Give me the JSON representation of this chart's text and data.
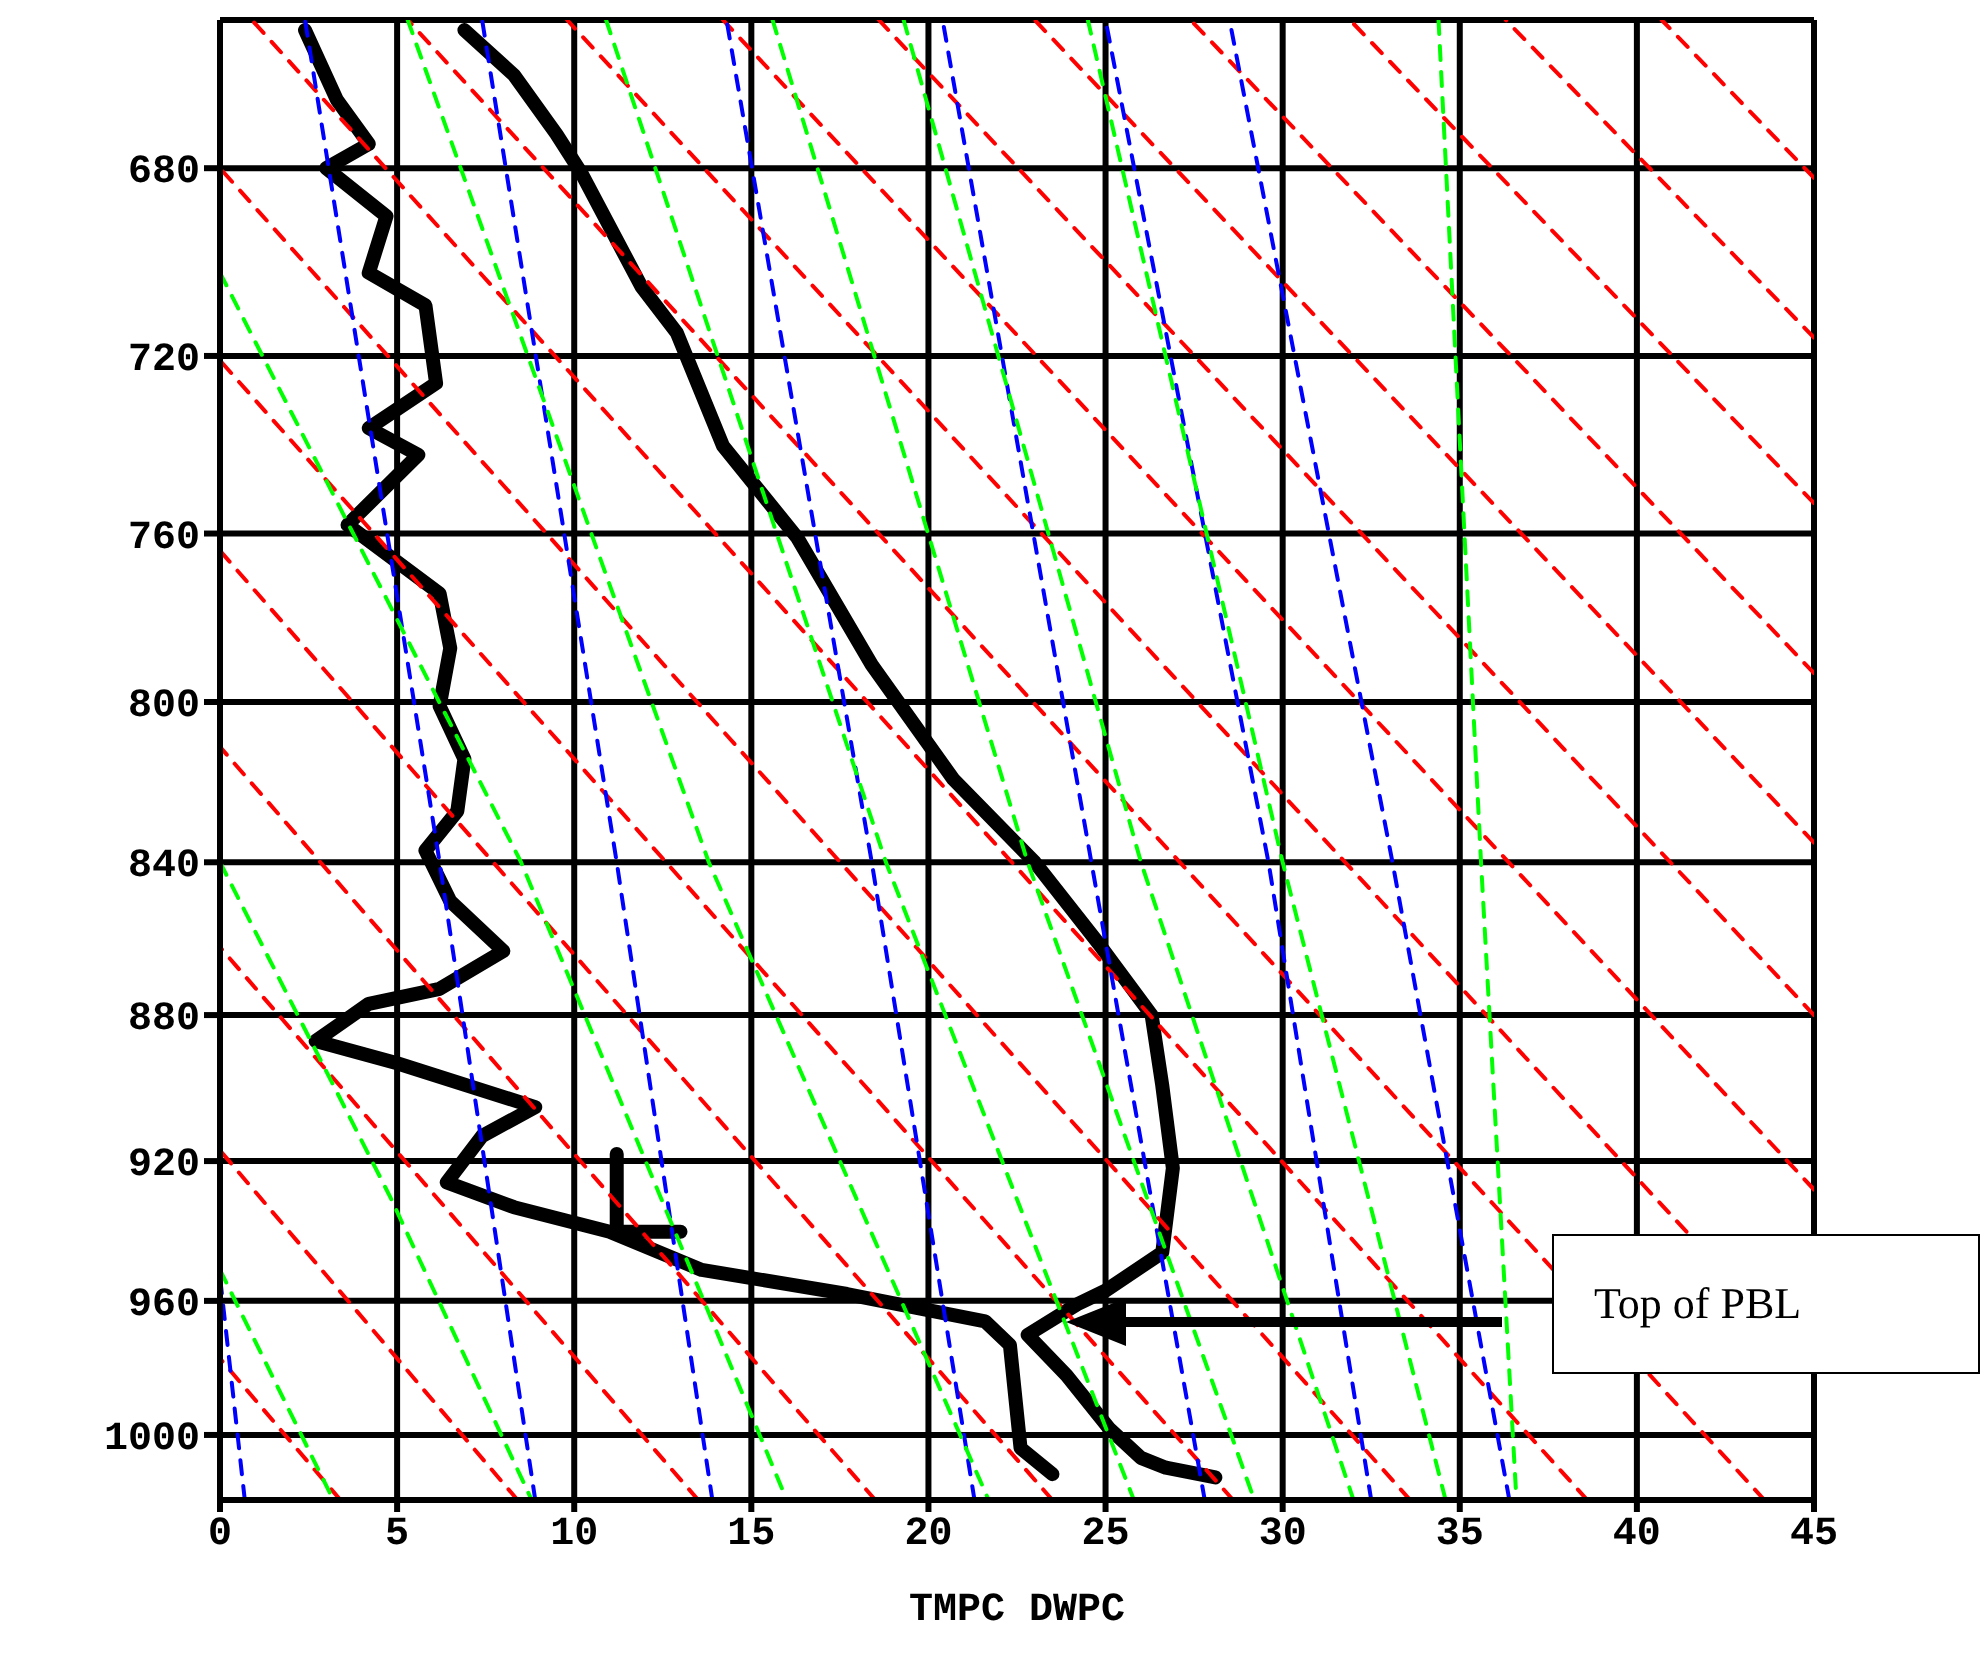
{
  "chart_data": {
    "type": "line",
    "xlabel": "TMPC  DWPC",
    "xlim": [
      0,
      45
    ],
    "ylim": [
      1020,
      650
    ],
    "xticks": [
      0,
      5,
      10,
      15,
      20,
      25,
      30,
      35,
      40,
      45
    ],
    "yticks": [
      680,
      720,
      760,
      800,
      840,
      880,
      920,
      960,
      1000
    ],
    "grid": true,
    "marker": "none",
    "log": true,
    "annotations": [
      "Top of PBL"
    ],
    "series": [
      {
        "color": "#000000",
        "line_style": "solid",
        "x": [
          6.9,
          8.3,
          9.5,
          10.2,
          11.9,
          12.9,
          14.2,
          16.3,
          18.4,
          20.7,
          23.0,
          24.8,
          26.3,
          26.6,
          26.9,
          26.6,
          25.0,
          24.2,
          22.8,
          23.9,
          25.1,
          26.0,
          26.7,
          28.1
        ],
        "values": [
          652,
          661,
          673,
          681,
          705,
          715,
          740,
          761,
          791,
          819,
          840,
          861,
          880,
          899,
          922,
          946,
          957,
          961,
          970,
          982,
          998,
          1007,
          1010,
          1013
        ]
      },
      {
        "color": "#000000",
        "line_style": "solid",
        "x": [
          2.4,
          3.3,
          4.2,
          3.0,
          4.7,
          4.2,
          5.8,
          6.1,
          4.2,
          5.6,
          3.6,
          6.2,
          6.5,
          6.2,
          6.9,
          6.7,
          5.8,
          6.5,
          8.0,
          6.2,
          4.2,
          2.7,
          5.0,
          8.9,
          7.4,
          6.4,
          8.3,
          11.0,
          13.6,
          17.7,
          21.6,
          22.3,
          22.6,
          23.5
        ],
        "values": [
          652,
          666,
          675,
          680,
          690,
          702,
          709,
          726,
          736,
          742,
          758,
          774,
          787,
          801,
          814,
          827,
          837,
          850,
          863,
          873,
          877,
          887,
          893,
          905,
          913,
          926,
          933,
          940,
          951,
          958,
          966,
          973,
          1004,
          1012
        ]
      },
      {
        "color": "#000000",
        "line_style": "solid",
        "x": [
          11.2,
          11.2,
          13.0
        ],
        "values": [
          918,
          940,
          940
        ]
      },
      {
        "color": "#ff0000",
        "line_style": "dashed",
        "x": [
          3.4,
          0
        ],
        "values": [
          1020,
          977
        ]
      },
      {
        "color": "#ff0000",
        "line_style": "dashed",
        "x": [
          8.4,
          0
        ],
        "values": [
          1020,
          917
        ]
      },
      {
        "color": "#ff0000",
        "line_style": "dashed",
        "x": [
          13.5,
          0
        ],
        "values": [
          1020,
          862
        ]
      },
      {
        "color": "#ff0000",
        "line_style": "dashed",
        "x": [
          18.5,
          0
        ],
        "values": [
          1020,
          811
        ]
      },
      {
        "color": "#ff0000",
        "line_style": "dashed",
        "x": [
          23.5,
          0
        ],
        "values": [
          1020,
          764
        ]
      },
      {
        "color": "#ff0000",
        "line_style": "dashed",
        "x": [
          28.6,
          0
        ],
        "values": [
          1020,
          721
        ]
      },
      {
        "color": "#ff0000",
        "line_style": "dashed",
        "x": [
          33.6,
          0
        ],
        "values": [
          1020,
          680
        ]
      },
      {
        "color": "#ff0000",
        "line_style": "dashed",
        "x": [
          38.6,
          0.9
        ],
        "values": [
          1020,
          650
        ]
      },
      {
        "color": "#ff0000",
        "line_style": "dashed",
        "x": [
          43.6,
          5.3
        ],
        "values": [
          1020,
          650
        ]
      },
      {
        "color": "#ff0000",
        "line_style": "dashed",
        "x": [
          41.4,
          9.8
        ],
        "values": [
          940,
          650
        ]
      },
      {
        "color": "#ff0000",
        "line_style": "dashed",
        "x": [
          45,
          14.2
        ],
        "values": [
          928,
          650
        ]
      },
      {
        "color": "#ff0000",
        "line_style": "dashed",
        "x": [
          45,
          18.6
        ],
        "values": [
          880,
          650
        ]
      },
      {
        "color": "#ff0000",
        "line_style": "dashed",
        "x": [
          45,
          23.0
        ],
        "values": [
          835,
          650
        ]
      },
      {
        "color": "#ff0000",
        "line_style": "dashed",
        "x": [
          45,
          27.4
        ],
        "values": [
          793,
          650
        ]
      },
      {
        "color": "#ff0000",
        "line_style": "dashed",
        "x": [
          45,
          31.9
        ],
        "values": [
          753,
          650
        ]
      },
      {
        "color": "#ff0000",
        "line_style": "dashed",
        "x": [
          45,
          36.3
        ],
        "values": [
          716,
          650
        ]
      },
      {
        "color": "#ff0000",
        "line_style": "dashed",
        "x": [
          45,
          40.7
        ],
        "values": [
          682,
          650
        ]
      },
      {
        "color": "#0000ff",
        "line_style": "dashed",
        "x": [
          0.7,
          0
        ],
        "values": [
          1020,
          953
        ]
      },
      {
        "color": "#0000ff",
        "line_style": "dashed",
        "x": [
          8.9,
          6.2,
          2.4
        ],
        "values": [
          1020,
          840,
          650
        ]
      },
      {
        "color": "#0000ff",
        "line_style": "dashed",
        "x": [
          13.9,
          11.2,
          7.4
        ],
        "values": [
          1020,
          840,
          650
        ]
      },
      {
        "color": "#0000ff",
        "line_style": "dashed",
        "x": [
          21.3,
          18.4,
          14.3
        ],
        "values": [
          1020,
          840,
          650
        ]
      },
      {
        "color": "#0000ff",
        "line_style": "dashed",
        "x": [
          27.8,
          24.6,
          20.4
        ],
        "values": [
          1020,
          840,
          650
        ]
      },
      {
        "color": "#0000ff",
        "line_style": "dashed",
        "x": [
          32.5,
          29.6,
          25.0
        ],
        "values": [
          1020,
          840,
          650
        ]
      },
      {
        "color": "#0000ff",
        "line_style": "dashed",
        "x": [
          36.4,
          33.1,
          28.5
        ],
        "values": [
          1020,
          840,
          650
        ]
      },
      {
        "color": "#00ff00",
        "line_style": "dashed",
        "x": [
          0,
          3.2
        ],
        "values": [
          951,
          1020
        ]
      },
      {
        "color": "#00ff00",
        "line_style": "dashed",
        "x": [
          0,
          4.8,
          8.8
        ],
        "values": [
          840,
          930,
          1020
        ]
      },
      {
        "color": "#00ff00",
        "line_style": "dashed",
        "x": [
          0,
          8.5,
          16.0
        ],
        "values": [
          702,
          840,
          1020
        ]
      },
      {
        "color": "#00ff00",
        "line_style": "dashed",
        "x": [
          5.3,
          13.8,
          21.7
        ],
        "values": [
          650,
          840,
          1020
        ]
      },
      {
        "color": "#00ff00",
        "line_style": "dashed",
        "x": [
          10.9,
          18.8,
          25.8
        ],
        "values": [
          650,
          840,
          1020
        ]
      },
      {
        "color": "#00ff00",
        "line_style": "dashed",
        "x": [
          15.6,
          22.8,
          29.2
        ],
        "values": [
          650,
          840,
          1020
        ]
      },
      {
        "color": "#00ff00",
        "line_style": "dashed",
        "x": [
          19.3,
          26.0,
          32.0
        ],
        "values": [
          650,
          840,
          1020
        ]
      },
      {
        "color": "#00ff00",
        "line_style": "dashed",
        "x": [
          24.5,
          30.0,
          34.6
        ],
        "values": [
          650,
          840,
          1020
        ]
      },
      {
        "color": "#00ff00",
        "line_style": "dashed",
        "x": [
          34.4,
          35.6,
          36.6
        ],
        "values": [
          650,
          840,
          1020
        ]
      }
    ]
  }
}
